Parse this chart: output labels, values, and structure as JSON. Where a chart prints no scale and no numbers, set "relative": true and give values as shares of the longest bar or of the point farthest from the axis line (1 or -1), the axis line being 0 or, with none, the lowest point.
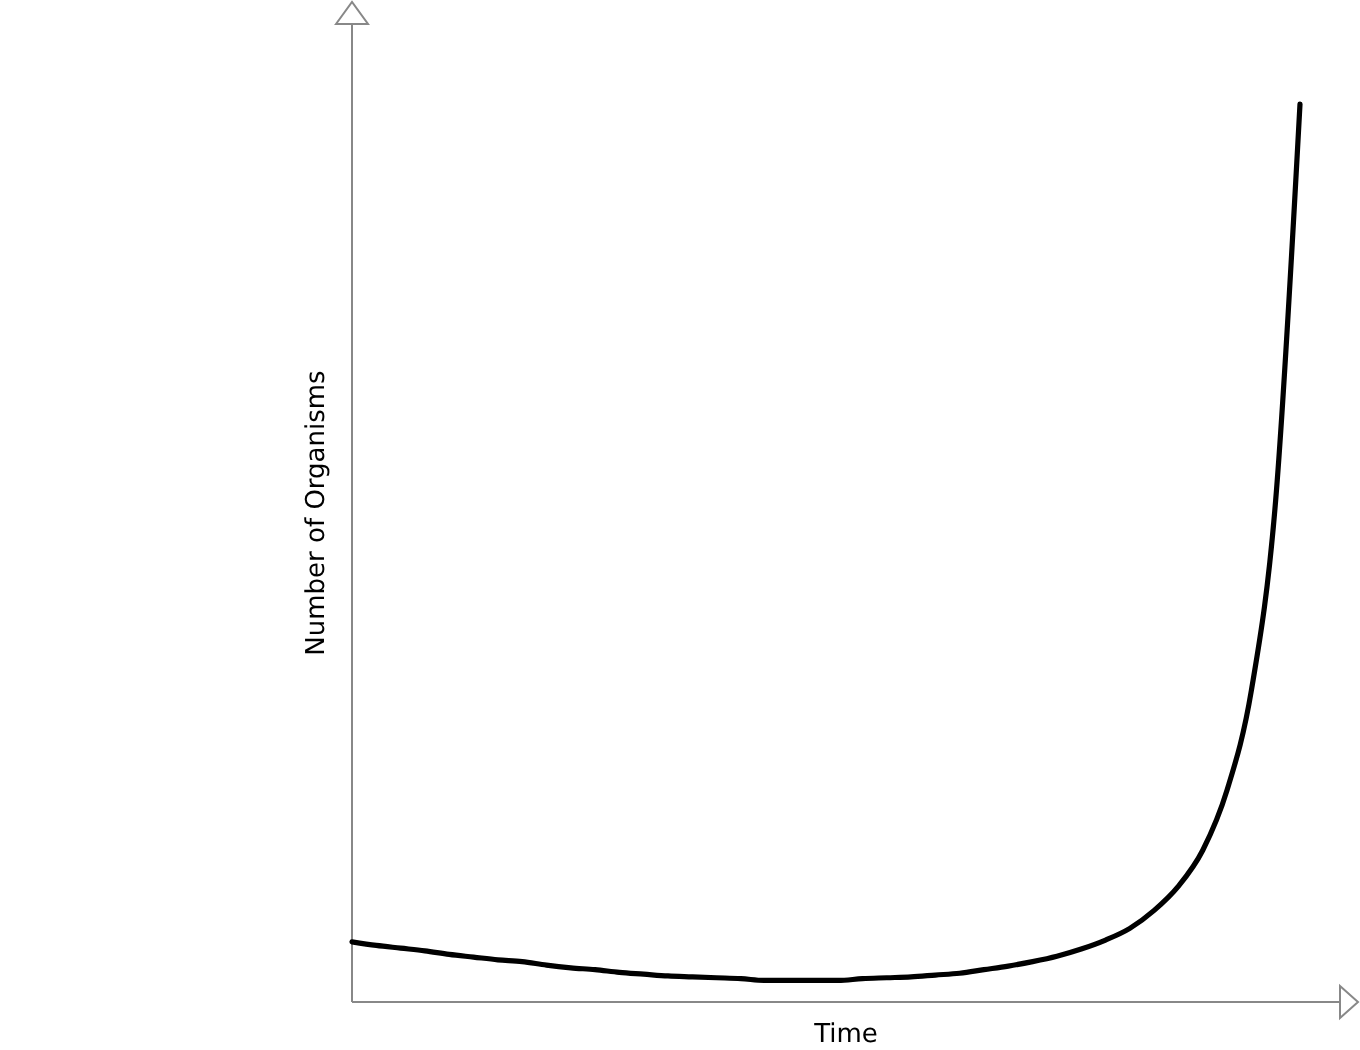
{
  "chart_data": {
    "type": "line",
    "relative": true,
    "xlabel": "Time",
    "ylabel": "Number of Organisms",
    "categories": [
      null,
      null,
      null,
      null,
      null,
      null,
      null,
      null,
      null,
      null,
      null,
      null,
      null,
      null,
      null,
      null,
      null,
      null,
      null,
      null,
      null,
      null,
      null,
      null,
      null,
      null,
      null,
      null,
      null,
      null,
      null,
      null,
      null,
      null,
      null,
      null,
      null,
      null,
      null,
      null
    ],
    "series": [
      {
        "color": "#000000",
        "values": [
          0.067,
          0.063,
          0.06,
          0.057,
          0.053,
          0.05,
          0.047,
          0.045,
          0.041,
          0.038,
          0.036,
          0.033,
          0.031,
          0.029,
          0.028,
          0.027,
          0.026,
          0.024,
          0.024,
          0.024,
          0.024,
          0.026,
          0.027,
          0.028,
          0.03,
          0.032,
          0.036,
          0.04,
          0.045,
          0.051,
          0.059,
          0.069,
          0.082,
          0.102,
          0.129,
          0.169,
          0.236,
          0.347,
          0.559,
          1
        ]
      }
    ]
  }
}
